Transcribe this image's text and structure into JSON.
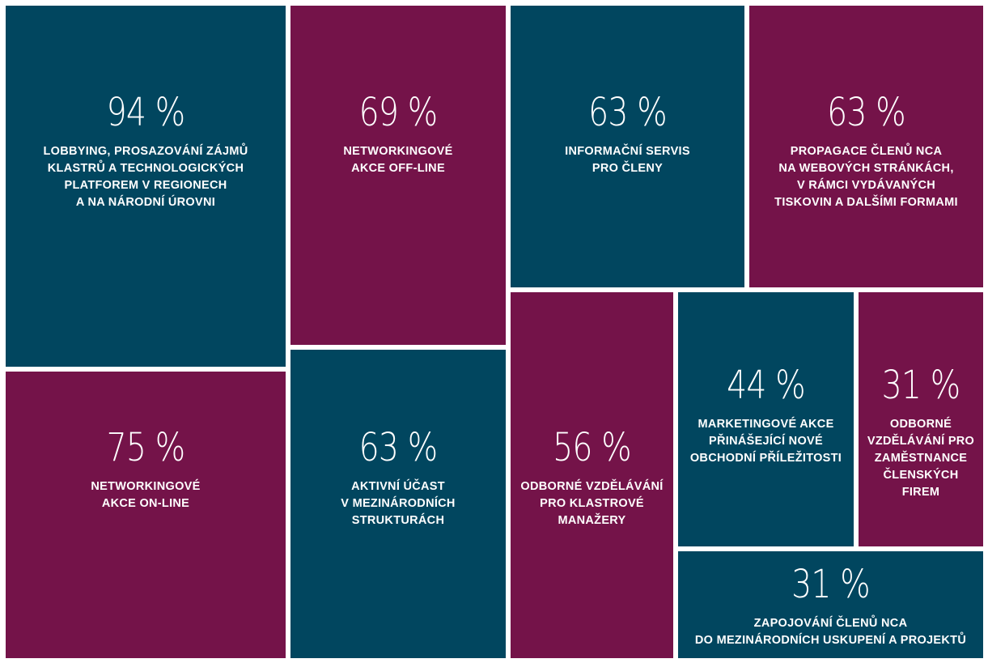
{
  "colors": {
    "teal": "#01465f",
    "plum": "#741349"
  },
  "chart_data": {
    "type": "treemap",
    "items": [
      {
        "value": 94,
        "value_label": "94 %",
        "label": "LOBBYING, PROSAZOVÁNÍ ZÁJMŮ\nKLASTRŮ A TECHNOLOGICKÝCH\nPLATFOREM V REGIONECH\nA NA NÁRODNÍ ÚROVNI",
        "color": "teal"
      },
      {
        "value": 69,
        "value_label": "69 %",
        "label": "NETWORKINGOVÉ\nAKCE OFF-LINE",
        "color": "plum"
      },
      {
        "value": 63,
        "value_label": "63 %",
        "label": "INFORMAČNÍ SERVIS\nPRO ČLENY",
        "color": "teal"
      },
      {
        "value": 63,
        "value_label": "63 %",
        "label": "PROPAGACE ČLENŮ NCA\nNA WEBOVÝCH STRÁNKÁCH,\nV RÁMCI VYDÁVANÝCH\nTISKOVIN A DALŠÍMI FORMAMI",
        "color": "plum"
      },
      {
        "value": 75,
        "value_label": "75 %",
        "label": "NETWORKINGOVÉ\nAKCE ON-LINE",
        "color": "plum"
      },
      {
        "value": 63,
        "value_label": "63 %",
        "label": "AKTIVNÍ ÚČAST\nV MEZINÁRODNÍCH\nSTRUKTURÁCH",
        "color": "teal"
      },
      {
        "value": 56,
        "value_label": "56 %",
        "label": "ODBORNÉ VZDĚLÁVÁNÍ\nPRO KLASTROVÉ\nMANAŽERY",
        "color": "plum"
      },
      {
        "value": 44,
        "value_label": "44 %",
        "label": "MARKETINGOVÉ AKCE\nPŘINÁŠEJÍCÍ NOVÉ\nOBCHODNÍ PŘÍLEŽITOSTI",
        "color": "teal"
      },
      {
        "value": 31,
        "value_label": "31 %",
        "label": "ODBORNÉ\nVZDĚLÁVÁNÍ PRO\nZAMĚSTNANCE\nČLENSKÝCH\nFIREM",
        "color": "plum"
      },
      {
        "value": 31,
        "value_label": "31 %",
        "label": "ZAPOJOVÁNÍ ČLENŮ NCA\nDO MEZINÁRODNÍCH USKUPENÍ A PROJEKTŮ",
        "color": "teal"
      }
    ]
  }
}
